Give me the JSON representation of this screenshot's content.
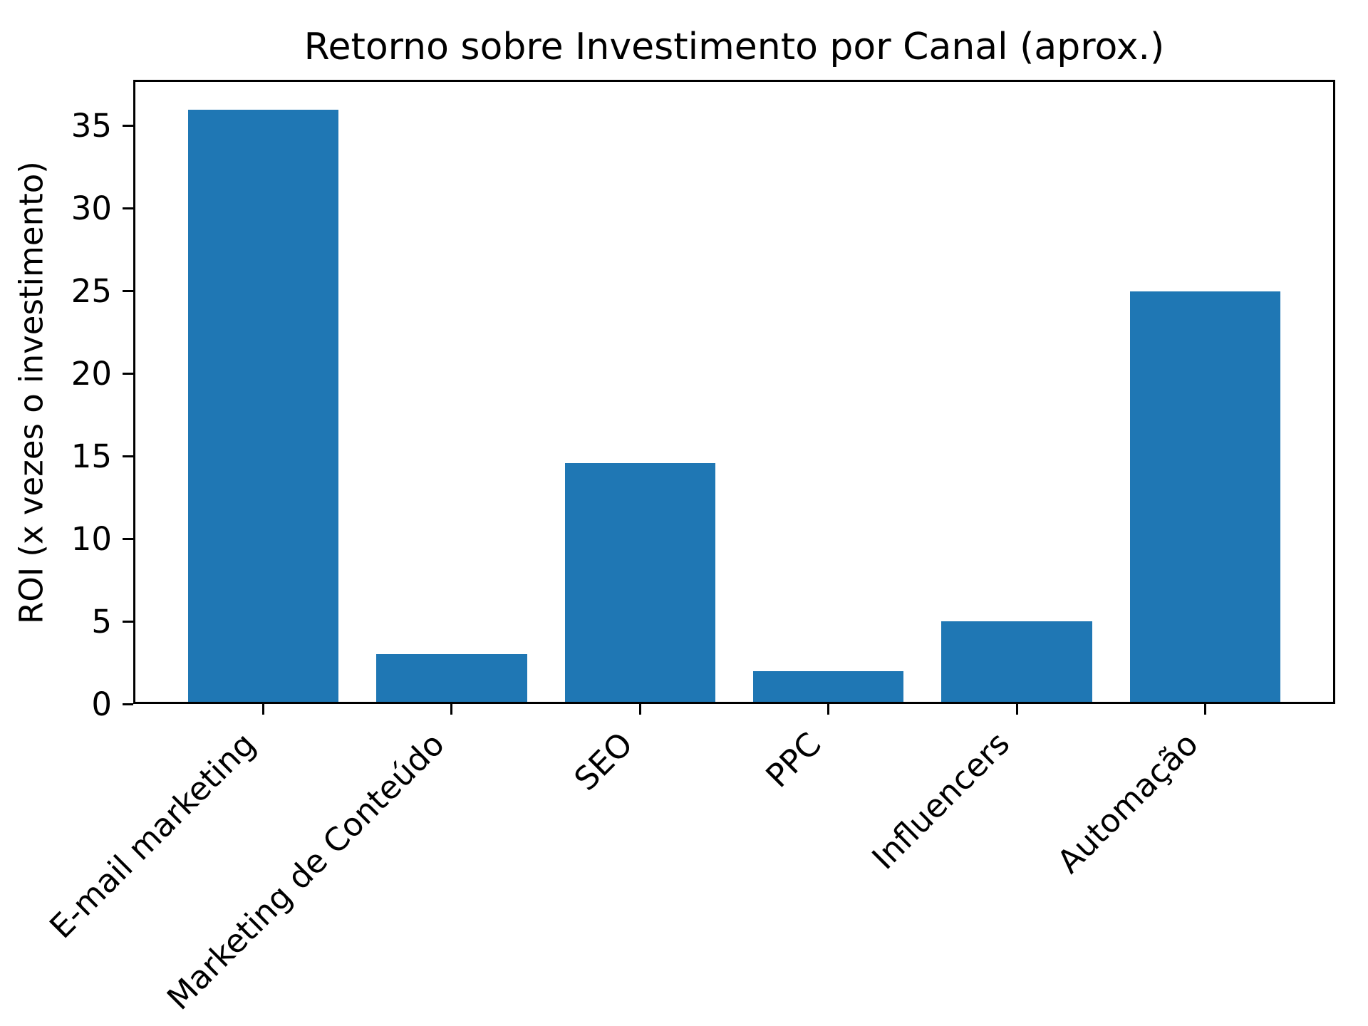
{
  "figure": {
    "background_color": "#ffffff",
    "text_color": "#000000"
  },
  "chart_data": {
    "type": "bar",
    "title": "Retorno sobre Investimento por Canal (aprox.)",
    "xlabel": "",
    "ylabel": "ROI (x vezes o investimento)",
    "categories": [
      "E-mail marketing",
      "Marketing de Conteúdo",
      "SEO",
      "PPC",
      "Influencers",
      "Automação"
    ],
    "values": [
      36,
      3,
      14.6,
      2,
      5,
      25
    ],
    "yticks": [
      0,
      5,
      10,
      15,
      20,
      25,
      30,
      35
    ],
    "ylim": [
      0,
      37.8
    ],
    "bar_color": "#1f77b4",
    "bar_width_fraction": 0.8,
    "grid": false,
    "legend": "none",
    "x_tick_label_rotation_deg": 45
  }
}
